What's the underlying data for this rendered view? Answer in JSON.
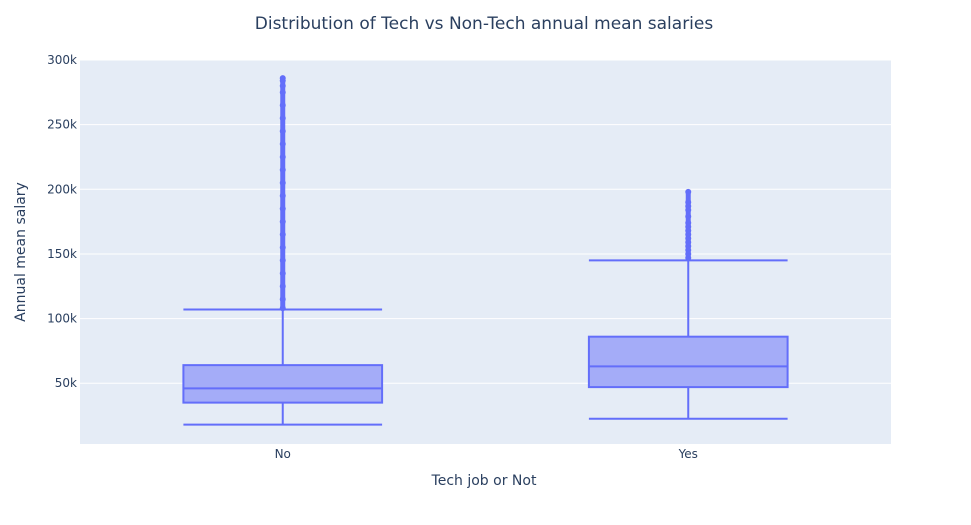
{
  "chart_data": {
    "type": "box",
    "title": "Distribution of Tech vs Non-Tech annual mean salaries",
    "xlabel": "Tech job or Not",
    "ylabel": "Annual mean salary",
    "categories": [
      "No",
      "Yes"
    ],
    "y_ticks": [
      {
        "value": 50000,
        "label": "50k"
      },
      {
        "value": 100000,
        "label": "100k"
      },
      {
        "value": 150000,
        "label": "150k"
      },
      {
        "value": 200000,
        "label": "200k"
      },
      {
        "value": 250000,
        "label": "250k"
      },
      {
        "value": 300000,
        "label": "300k"
      }
    ],
    "ylim": [
      3000,
      300000
    ],
    "grid": true,
    "colors": {
      "plot_bg": "#e5ecf6",
      "grid": "#ffffff",
      "box_line": "#636efa",
      "box_fill": "#a4acf8",
      "text": "#2a3f5f"
    },
    "boxes": [
      {
        "category": "No",
        "lower_whisker": 18000,
        "q1": 35000,
        "median": 46000,
        "q3": 64000,
        "upper_whisker": 107000,
        "outliers": [
          108000,
          115000,
          125000,
          135000,
          145000,
          155000,
          165000,
          175000,
          185000,
          195000,
          205000,
          215000,
          225000,
          235000,
          245000,
          255000,
          265000,
          275000,
          280000,
          284000,
          286000
        ]
      },
      {
        "category": "Yes",
        "lower_whisker": 22500,
        "q1": 47000,
        "median": 63000,
        "q3": 86000,
        "upper_whisker": 145000,
        "outliers": [
          147000,
          150000,
          153000,
          156000,
          159000,
          162000,
          165000,
          168000,
          171000,
          174000,
          179000,
          184000,
          187000,
          190000,
          198000
        ]
      }
    ]
  }
}
